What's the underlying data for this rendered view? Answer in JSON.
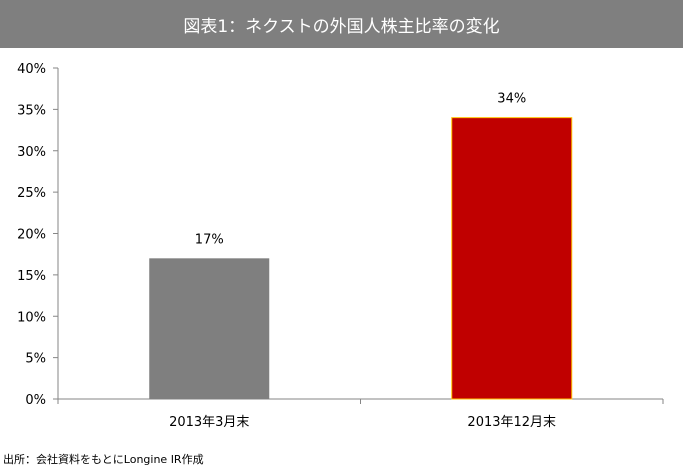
{
  "title": "図表1：ネクストの外国人株主比率の変化",
  "source": "出所：会社資料をもとにLongine IR作成",
  "colors": {
    "title_bg": "#7f7f7f",
    "title_text": "#ffffff",
    "bar_gray": "#7f7f7f",
    "bar_red": "#c00000",
    "bar_red_outline": "#ffc000",
    "axis": "#868686"
  },
  "chart_data": {
    "type": "bar",
    "title": "図表1：ネクストの外国人株主比率の変化",
    "categories": [
      "2013年3月末",
      "2013年12月末"
    ],
    "values": [
      17,
      34
    ],
    "value_format": "percent",
    "data_labels": [
      "17%",
      "34%"
    ],
    "bar_colors": [
      "#7f7f7f",
      "#c00000"
    ],
    "ylim": [
      0,
      40
    ],
    "yticks": [
      0,
      5,
      10,
      15,
      20,
      25,
      30,
      35,
      40
    ],
    "ytick_labels": [
      "0%",
      "5%",
      "10%",
      "15%",
      "20%",
      "25%",
      "30%",
      "35%",
      "40%"
    ],
    "xlabel": "",
    "ylabel": "",
    "grid": false,
    "legend": "none"
  }
}
